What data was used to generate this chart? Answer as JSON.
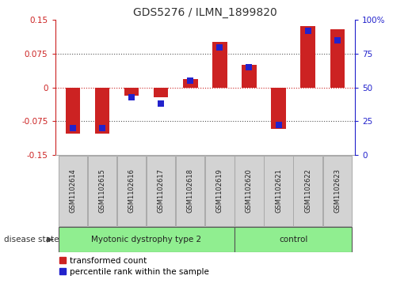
{
  "title": "GDS5276 / ILMN_1899820",
  "samples": [
    "GSM1102614",
    "GSM1102615",
    "GSM1102616",
    "GSM1102617",
    "GSM1102618",
    "GSM1102619",
    "GSM1102620",
    "GSM1102621",
    "GSM1102622",
    "GSM1102623"
  ],
  "red_values": [
    -0.102,
    -0.102,
    -0.018,
    -0.022,
    0.018,
    0.102,
    0.05,
    -0.092,
    0.137,
    0.13
  ],
  "blue_values": [
    20,
    20,
    43,
    38,
    55,
    80,
    65,
    22,
    92,
    85
  ],
  "group_boundary": 6,
  "group1_label": "Myotonic dystrophy type 2",
  "group2_label": "control",
  "group_color": "#90ee90",
  "ylim_left": [
    -0.15,
    0.15
  ],
  "ylim_right": [
    0,
    100
  ],
  "yticks_left": [
    -0.15,
    -0.075,
    0,
    0.075,
    0.15
  ],
  "ytick_labels_left": [
    "-0.15",
    "-0.075",
    "0",
    "0.075",
    "0.15"
  ],
  "yticks_right": [
    0,
    25,
    50,
    75,
    100
  ],
  "ytick_labels_right": [
    "0",
    "25",
    "50",
    "75",
    "100%"
  ],
  "red_color": "#cc2222",
  "blue_color": "#2222cc",
  "box_color": "#d3d3d3",
  "box_edge_color": "#aaaaaa",
  "bar_width": 0.5,
  "blue_marker_size": 6,
  "disease_state_label": "disease state"
}
